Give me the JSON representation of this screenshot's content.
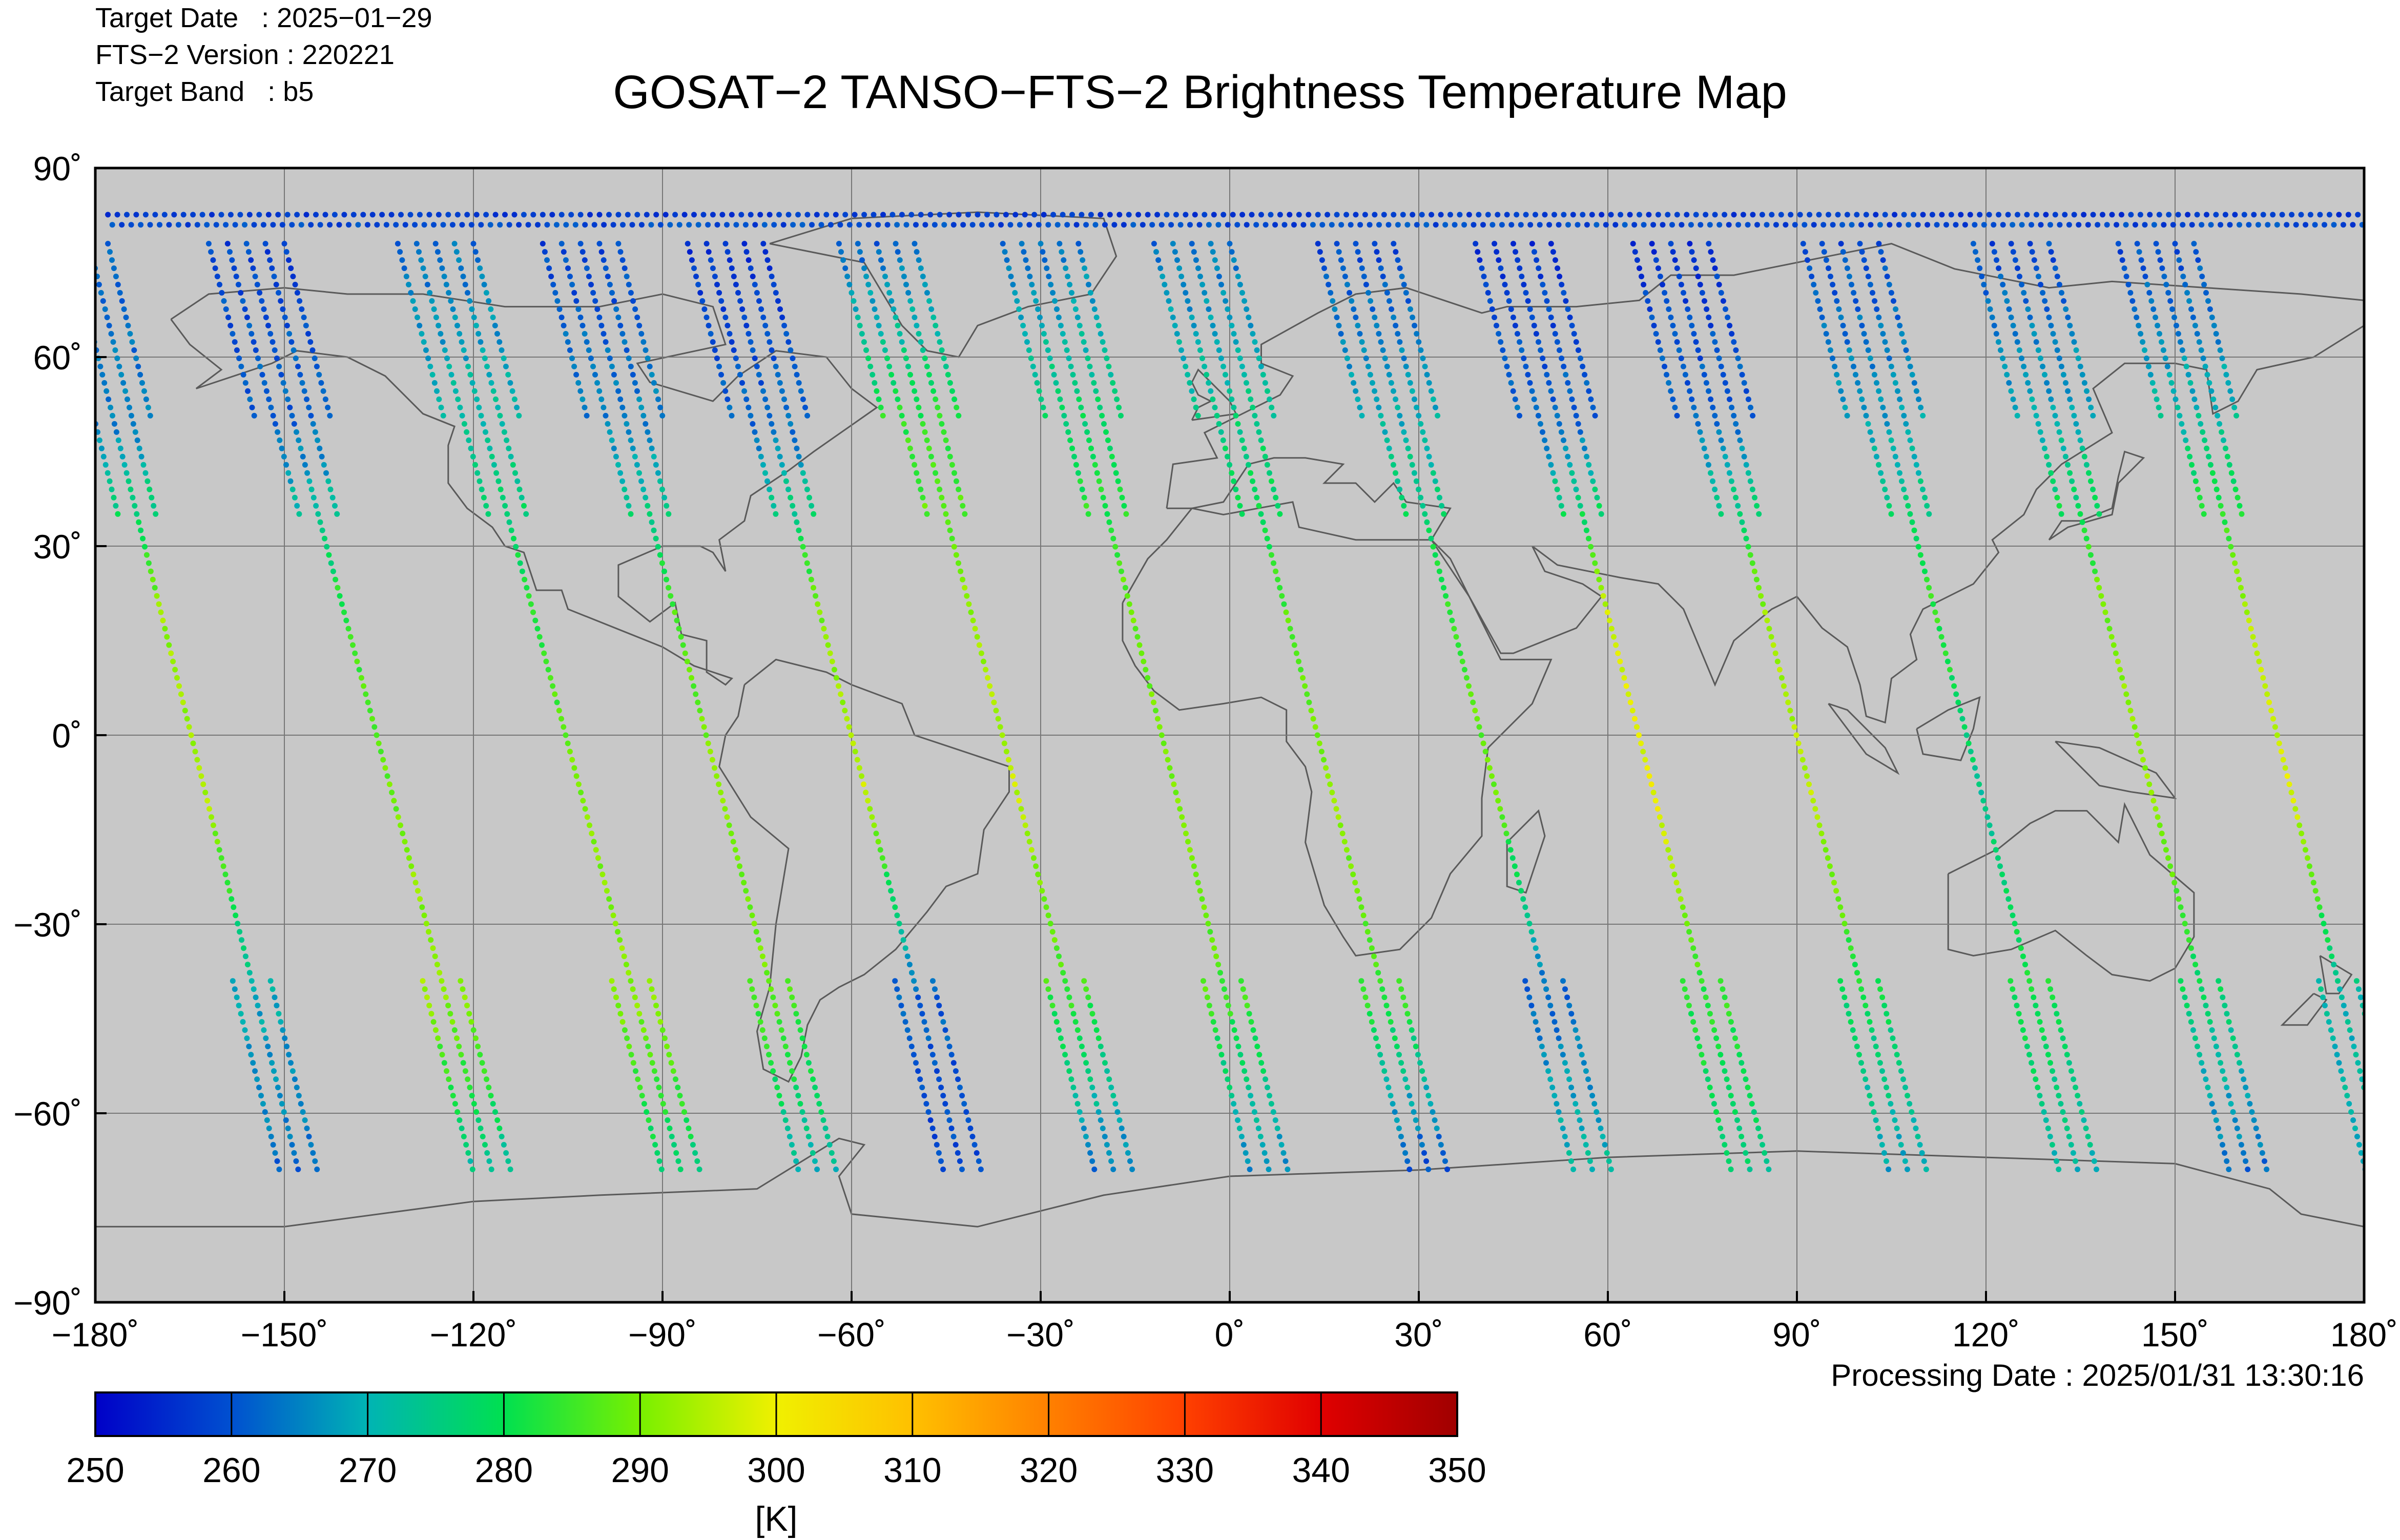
{
  "header": {
    "target_date": "Target Date   : 2025−01−29",
    "fts_version": "FTS−2 Version : 220221",
    "target_band": "Target Band   : b5"
  },
  "title": "GOSAT−2 TANSO−FTS−2 Brightness Temperature Map",
  "processing_date": "Processing Date : 2025/01/31 13:30:16",
  "chart_data": {
    "type": "scatter",
    "projection": "equirectangular",
    "background_color": "#c8c8c8",
    "coastline_color": "#5a5a5a",
    "grid": true,
    "xlim": [
      -180,
      180
    ],
    "ylim": [
      -90,
      90
    ],
    "x_ticks": [
      -180,
      -150,
      -120,
      -90,
      -60,
      -30,
      0,
      30,
      60,
      90,
      120,
      150,
      180
    ],
    "y_ticks": [
      -90,
      -60,
      -30,
      0,
      30,
      60,
      90
    ],
    "x_tick_labels": [
      "−180˚",
      "−150˚",
      "−120˚",
      "−90˚",
      "−60˚",
      "−30˚",
      "0˚",
      "30˚",
      "60˚",
      "90˚",
      "120˚",
      "150˚",
      "180˚"
    ],
    "y_tick_labels": [
      "−90˚",
      "−60˚",
      "−30˚",
      "0˚",
      "30˚",
      "60˚",
      "90˚"
    ],
    "colorbar": {
      "min": 250,
      "max": 350,
      "ticks": [
        250,
        260,
        270,
        280,
        290,
        300,
        310,
        320,
        330,
        340,
        350
      ],
      "tick_labels": [
        "250",
        "260",
        "270",
        "280",
        "290",
        "300",
        "310",
        "320",
        "330",
        "340",
        "350"
      ],
      "unit": "[K]",
      "colors": [
        "#0000c8",
        "#0050d0",
        "#00b4b4",
        "#00e050",
        "#78f000",
        "#f0f000",
        "#ffc000",
        "#ff8000",
        "#ff4000",
        "#e00000",
        "#a00000"
      ]
    },
    "orbit_tracks": [
      {
        "lon_start": -166,
        "lon_end": -157,
        "bt": [
          262,
          264,
          292,
          294,
          270,
          262
        ]
      },
      {
        "lon_start": -138,
        "lon_end": -127,
        "bt": [
          258,
          262,
          284,
          289,
          293,
          272
        ]
      },
      {
        "lon_start": -108,
        "lon_end": -97,
        "bt": [
          262,
          272,
          282,
          290,
          292,
          276
        ]
      },
      {
        "lon_start": -85,
        "lon_end": -75,
        "bt": [
          258,
          265,
          286,
          291,
          288,
          270
        ]
      },
      {
        "lon_start": -62,
        "lon_end": -52,
        "bt": [
          255,
          262,
          290,
          296,
          262,
          258
        ]
      },
      {
        "lon_start": -38,
        "lon_end": -28,
        "bt": [
          260,
          283,
          292,
          296,
          285,
          262
        ]
      },
      {
        "lon_start": -12,
        "lon_end": -3,
        "bt": [
          262,
          278,
          288,
          290,
          286,
          264
        ]
      },
      {
        "lon_start": 12,
        "lon_end": 22,
        "bt": [
          262,
          275,
          286,
          292,
          285,
          258
        ]
      },
      {
        "lon_start": 38,
        "lon_end": 48,
        "bt": [
          258,
          270,
          284,
          290,
          262,
          272
        ]
      },
      {
        "lon_start": 63,
        "lon_end": 73,
        "bt": [
          256,
          262,
          296,
          300,
          284,
          275
        ]
      },
      {
        "lon_start": 88,
        "lon_end": 98,
        "bt": [
          256,
          262,
          292,
          296,
          280,
          268
        ]
      },
      {
        "lon_start": 115,
        "lon_end": 125,
        "bt": [
          258,
          268,
          284,
          274,
          282,
          270
        ]
      },
      {
        "lon_start": 142,
        "lon_end": 152,
        "bt": [
          258,
          270,
          290,
          292,
          278,
          262
        ]
      },
      {
        "lon_start": 165,
        "lon_end": 174,
        "bt": [
          258,
          272,
          294,
          298,
          272,
          268
        ]
      }
    ]
  }
}
